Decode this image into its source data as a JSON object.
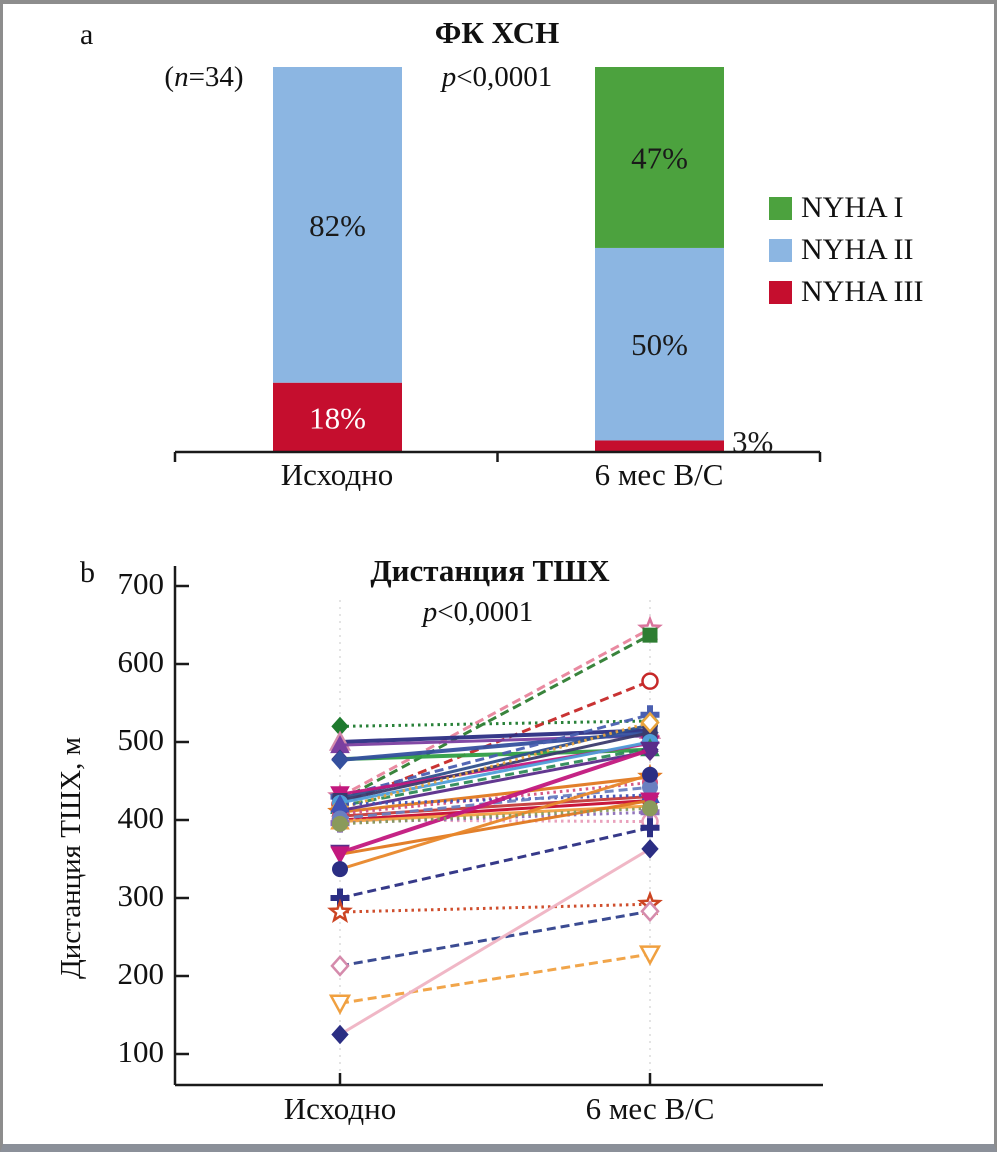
{
  "panel_a": {
    "label": "a",
    "p_parts": [
      "p",
      "<0,0001"
    ],
    "n_parts": [
      "(",
      "n",
      "=34)"
    ],
    "legend": [
      {
        "label": "NYHA I",
        "color": "#4ca23e"
      },
      {
        "label": "NYHA II",
        "color": "#8cb6e2"
      },
      {
        "label": "NYHA III",
        "color": "#c50e2e"
      }
    ]
  },
  "panel_b": {
    "label": "b",
    "p_parts": [
      "p",
      "<0,0001"
    ],
    "y_axis_label": "Дистанция ТШХ, м"
  },
  "chart_data": [
    {
      "type": "bar",
      "stacked": true,
      "title": "ФК ХСН",
      "subtitle": "p<0,0001",
      "annotation": "(n=34)",
      "categories": [
        "Исходно",
        "6 мес В/С"
      ],
      "ylim": [
        0,
        100
      ],
      "legend_position": "right",
      "legend_order": [
        "NYHA I",
        "NYHA II",
        "NYHA III"
      ],
      "series": [
        {
          "name": "NYHA III",
          "color": "#c50e2e",
          "values": [
            18,
            3
          ],
          "labels": [
            "18%",
            "3%"
          ],
          "label_color": "#ffffff"
        },
        {
          "name": "NYHA II",
          "color": "#8cb6e2",
          "values": [
            82,
            50
          ],
          "labels": [
            "82%",
            "50%"
          ],
          "label_color": "#1a1a1a"
        },
        {
          "name": "NYHA I",
          "color": "#4ca23e",
          "values": [
            0,
            47
          ],
          "labels": [
            "",
            "47%"
          ],
          "label_color": "#1a1a1a"
        }
      ]
    },
    {
      "type": "line",
      "title": "Дистанция ТШХ",
      "subtitle": "p<0,0001",
      "ylabel": "Дистанция ТШХ, м",
      "categories": [
        "Исходно",
        "6 мес В/С"
      ],
      "ylim": [
        100,
        700
      ],
      "yticks": [
        700,
        600,
        500,
        400,
        300,
        200,
        100
      ],
      "grid": "faint-vertical-dotted",
      "series": [
        {
          "from": 520,
          "to": 527,
          "color": "#1e7a2e",
          "dash": "dotted",
          "marker": "diamond"
        },
        {
          "from": 430,
          "to": 645,
          "color": "#e8849c",
          "dash": "dashed",
          "marker": "star-open",
          "marker_stroke": "#d9739b"
        },
        {
          "from": 425,
          "to": 637,
          "color": "#2e7d32",
          "dash": "dashed",
          "marker": "square"
        },
        {
          "from": 420,
          "to": 578,
          "color": "#c62828",
          "dash": "dashed",
          "marker": "circle-open"
        },
        {
          "from": 500,
          "to": 515,
          "color": "#2b2e83",
          "width": 4,
          "marker": "triangle-up-open",
          "marker_stroke": "#d58bac"
        },
        {
          "from": 496,
          "to": 508,
          "color": "#7b3fa0",
          "marker": "triangle-up"
        },
        {
          "from": 478,
          "to": 490,
          "color": "#2f9e44",
          "width": 4,
          "marker": "diamond",
          "marker_fill": "#3a2d7d"
        },
        {
          "from": 477,
          "to": 512,
          "color": "#35509e",
          "width": 4,
          "marker": "diamond"
        },
        {
          "from": 430,
          "to": 535,
          "color": "#4a5fb0",
          "dash": "dashed",
          "marker": "cross"
        },
        {
          "from": 428,
          "to": 522,
          "color": "#30508c",
          "marker": "circle"
        },
        {
          "from": 433,
          "to": 498,
          "color": "#c2187e",
          "marker": "triangle-down"
        },
        {
          "from": 425,
          "to": 512,
          "color": "#3b3b6d",
          "marker": "square"
        },
        {
          "from": 422,
          "to": 500,
          "color": "#4f9ed9",
          "marker": "circle"
        },
        {
          "from": 418,
          "to": 492,
          "color": "#2e8b57",
          "dash": "dashed",
          "marker": "triangle-up"
        },
        {
          "from": 415,
          "to": 525,
          "color": "#e8a33d",
          "dash": "dotted",
          "marker": "diamond-open"
        },
        {
          "from": 410,
          "to": 455,
          "color": "#e07820",
          "marker": "star-open"
        },
        {
          "from": 408,
          "to": 448,
          "color": "#d2527f",
          "dash": "dotted",
          "marker": "circle"
        },
        {
          "from": 405,
          "to": 430,
          "color": "#c43b3b",
          "marker": "diamond"
        },
        {
          "from": 400,
          "to": 425,
          "color": "#c60c30",
          "marker": "circle"
        },
        {
          "from": 400,
          "to": 398,
          "color": "#e89cb8",
          "dash": "dotted",
          "marker": "circle-open"
        },
        {
          "from": 398,
          "to": 418,
          "color": "#f0a040",
          "marker": "triangle-up"
        },
        {
          "from": 396,
          "to": 410,
          "color": "#8b6db8",
          "dash": "dotted",
          "marker": "cross"
        },
        {
          "from": 412,
          "to": 488,
          "color": "#5a2d8a",
          "marker": "diamond"
        },
        {
          "from": 420,
          "to": 432,
          "color": "#3f51b5",
          "dash": "dotted",
          "marker": "triangle-up"
        },
        {
          "from": 402,
          "to": 442,
          "color": "#6a7fc0",
          "dash": "dashed",
          "marker": "circle"
        },
        {
          "from": 358,
          "to": 490,
          "color": "#c2187e",
          "width": 4,
          "marker": "triangle-down",
          "marker_fill": "#5a2d8a"
        },
        {
          "from": 356,
          "to": 425,
          "color": "#e07820",
          "marker": "triangle-down",
          "marker_fill": "#c2187e"
        },
        {
          "from": 337,
          "to": 458,
          "color": "#e8872a",
          "marker": "circle",
          "marker_fill": "#2b2e83"
        },
        {
          "from": 300,
          "to": 390,
          "color": "#2b2e83",
          "dash": "dashed",
          "marker": "cross"
        },
        {
          "from": 282,
          "to": 292,
          "color": "#cc4422",
          "dash": "dotted",
          "marker": "star-open"
        },
        {
          "from": 213,
          "to": 283,
          "color": "#30418c",
          "dash": "dashed",
          "marker": "diamond-open",
          "marker_stroke": "#d58bac"
        },
        {
          "from": 165,
          "to": 228,
          "color": "#f0a040",
          "dash": "dashed",
          "marker": "triangle-down-open"
        },
        {
          "from": 125,
          "to": 363,
          "color": "#efb3c3",
          "marker": "diamond",
          "marker_fill": "#2b2e83"
        },
        {
          "from": 395,
          "to": 415,
          "color": "#8a9a5b",
          "dash": "dotted",
          "marker": "circle"
        }
      ]
    }
  ]
}
